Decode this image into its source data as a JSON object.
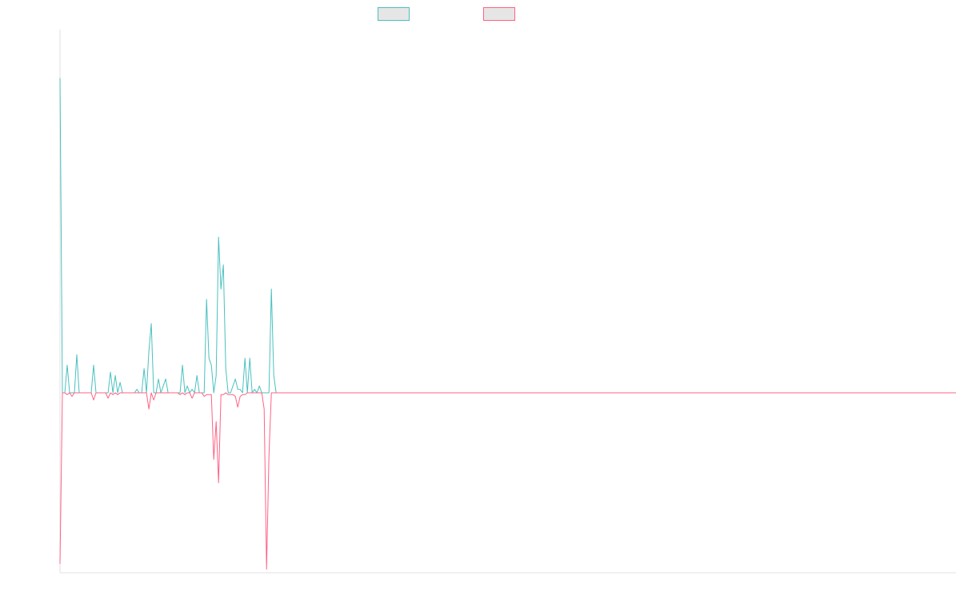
{
  "colors": {
    "series_1": "#4bc0c0",
    "series_2": "#ff6384",
    "legend_fill": "#e6e6e6",
    "axis": "#e0e0e0"
  },
  "chart_data": {
    "type": "line",
    "title": "",
    "xlabel": "",
    "ylabel": "",
    "xlim": [
      0,
      373
    ],
    "ylim": [
      -1.0,
      1.05
    ],
    "grid": false,
    "legend": "top-center",
    "series": [
      {
        "color": "#4bc0c0",
        "values": [
          0.91,
          0.0,
          0.0,
          0.08,
          0.0,
          0.0,
          0.0,
          0.11,
          0.0,
          0.0,
          0.0,
          0.0,
          0.0,
          0.0,
          0.08,
          0.0,
          0.0,
          0.0,
          0.0,
          0.0,
          0.0,
          0.06,
          0.0,
          0.05,
          0.0,
          0.03,
          0.0,
          0.0,
          0.0,
          0.0,
          0.0,
          0.0,
          0.01,
          0.0,
          0.0,
          0.07,
          0.0,
          0.12,
          0.2,
          0.0,
          0.0,
          0.04,
          0.0,
          0.02,
          0.04,
          0.0,
          0.0,
          0.0,
          0.0,
          0.0,
          0.0,
          0.08,
          0.0,
          0.02,
          0.0,
          0.01,
          0.0,
          0.05,
          0.0,
          0.0,
          0.0,
          0.27,
          0.1,
          0.08,
          0.0,
          0.05,
          0.45,
          0.3,
          0.37,
          0.07,
          0.0,
          0.0,
          0.02,
          0.04,
          0.01,
          0.01,
          0.0,
          0.1,
          0.0,
          0.1,
          0.0,
          0.01,
          0.0,
          0.02,
          0.0,
          0.0,
          0.0,
          0.0,
          0.3,
          0.05,
          0.0,
          0.0
        ]
      },
      {
        "color": "#ff6384",
        "values": [
          -0.95,
          0.0,
          0.0,
          -0.01,
          0.0,
          -0.02,
          0.0,
          0.0,
          0.0,
          0.0,
          0.0,
          0.0,
          0.0,
          0.0,
          -0.04,
          0.0,
          0.0,
          0.0,
          0.0,
          0.0,
          -0.03,
          0.0,
          -0.01,
          0.0,
          -0.01,
          0.0,
          0.0,
          0.0,
          0.0,
          0.0,
          0.0,
          0.0,
          0.0,
          0.0,
          0.0,
          0.0,
          0.0,
          -0.09,
          0.0,
          -0.04,
          0.0,
          0.0,
          0.0,
          0.0,
          0.0,
          0.0,
          0.0,
          0.0,
          0.0,
          0.0,
          -0.01,
          0.0,
          -0.01,
          0.0,
          0.0,
          -0.03,
          0.0,
          0.0,
          0.0,
          0.0,
          -0.02,
          -0.01,
          -0.01,
          -0.01,
          -0.37,
          -0.16,
          -0.5,
          -0.01,
          -0.01,
          0.0,
          -0.01,
          -0.01,
          -0.01,
          -0.02,
          -0.08,
          -0.02,
          -0.01,
          -0.01,
          0.0,
          0.0,
          0.0,
          0.0,
          0.0,
          0.0,
          0.0,
          -0.09,
          -0.98,
          -0.35,
          0.0,
          0.0
        ]
      }
    ]
  }
}
